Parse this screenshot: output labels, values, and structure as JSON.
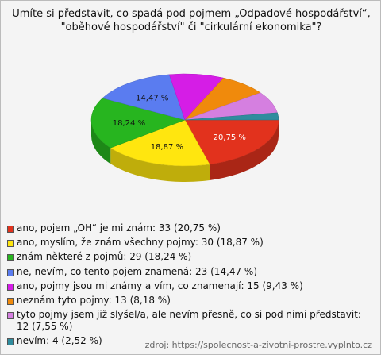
{
  "chart_data": {
    "type": "pie",
    "title": [
      "Umíte si představit, co spadá pod pojmem „Odpadové hospodářství“,",
      "\"oběhové hospodářství\" či \"cirkulární ekonomika\"?"
    ],
    "categories": [
      "ano, pojem „OH“ je mi znám: 33 (20,75 %)",
      "ano, myslím, že znám všechny pojmy: 30 (18,87 %)",
      "znám některé z pojmů: 29 (18,24 %)",
      "ne, nevím, co tento pojem znamená: 23 (14,47 %)",
      "ano, pojmy jsou mi známy a vím, co znamenají: 15 (9,43 %)",
      "neznám tyto pojmy: 13 (8,18 %)",
      "tyto pojmy jsem již slyšel/a, ale nevím přesně, co si pod nimi představit: 12 (7,55 %)",
      "nevím: 4 (2,52 %)"
    ],
    "values": [
      20.75,
      18.87,
      18.24,
      14.47,
      9.43,
      8.18,
      7.55,
      2.52
    ],
    "value_labels": [
      "20,75 %",
      "18,87 %",
      "18,24 %",
      "14,47 %",
      null,
      null,
      null,
      null
    ],
    "colors": [
      "#e2321d",
      "#ffe60f",
      "#27b51f",
      "#5a7cf0",
      "#d51de6",
      "#f08a0c",
      "#d57fe0",
      "#2f8c9e"
    ],
    "source": "zdroj: https://spolecnost-a-zivotni-prostre.vyplnto.cz"
  }
}
